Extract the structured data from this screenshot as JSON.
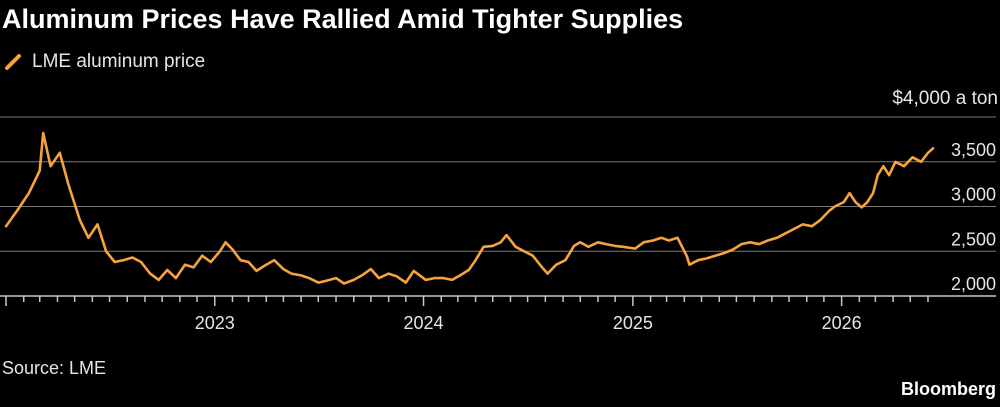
{
  "title": "Aluminum Prices Have Rallied Amid Tighter Supplies",
  "legend": {
    "label": "LME aluminum price"
  },
  "unit_label": "$4,000 a ton",
  "source": "Source: LME",
  "brand": "Bloomberg",
  "colors": {
    "line": "#f5a33c",
    "grid": "#7a7a7a",
    "axis": "#c8c8c8",
    "background": "#000000"
  },
  "chart_data": {
    "type": "line",
    "title": "Aluminum Prices Have Rallied Amid Tighter Supplies",
    "xlabel": "",
    "ylabel": "",
    "ylim": [
      2000,
      4000
    ],
    "xlim": [
      "2022-01-01",
      "2026-06-15"
    ],
    "y_ticks": [
      {
        "value": 2000,
        "label": "2,000"
      },
      {
        "value": 2500,
        "label": "2,500"
      },
      {
        "value": 3000,
        "label": "3,000"
      },
      {
        "value": 3500,
        "label": "3,500"
      },
      {
        "value": 4000,
        "label": "$4,000 a ton"
      }
    ],
    "x_ticks": [
      {
        "value": "2023-01-01",
        "label": "2023"
      },
      {
        "value": "2024-01-01",
        "label": "2024"
      },
      {
        "value": "2025-01-01",
        "label": "2025"
      },
      {
        "value": "2026-01-01",
        "label": "2026"
      }
    ],
    "grid": true,
    "legend_position": "top-left",
    "series": [
      {
        "name": "LME aluminum price",
        "points": [
          [
            "2022-01-01",
            2780
          ],
          [
            "2022-01-20",
            2950
          ],
          [
            "2022-02-10",
            3150
          ],
          [
            "2022-03-01",
            3400
          ],
          [
            "2022-03-07",
            3820
          ],
          [
            "2022-03-20",
            3450
          ],
          [
            "2022-04-05",
            3600
          ],
          [
            "2022-04-20",
            3250
          ],
          [
            "2022-05-10",
            2850
          ],
          [
            "2022-05-25",
            2650
          ],
          [
            "2022-06-10",
            2800
          ],
          [
            "2022-06-25",
            2500
          ],
          [
            "2022-07-10",
            2380
          ],
          [
            "2022-07-25",
            2400
          ],
          [
            "2022-08-10",
            2430
          ],
          [
            "2022-08-25",
            2380
          ],
          [
            "2022-09-10",
            2250
          ],
          [
            "2022-09-25",
            2180
          ],
          [
            "2022-10-10",
            2290
          ],
          [
            "2022-10-25",
            2200
          ],
          [
            "2022-11-10",
            2350
          ],
          [
            "2022-11-25",
            2320
          ],
          [
            "2022-12-10",
            2450
          ],
          [
            "2022-12-25",
            2380
          ],
          [
            "2023-01-10",
            2500
          ],
          [
            "2023-01-20",
            2600
          ],
          [
            "2023-02-01",
            2520
          ],
          [
            "2023-02-15",
            2400
          ],
          [
            "2023-03-01",
            2380
          ],
          [
            "2023-03-15",
            2280
          ],
          [
            "2023-04-01",
            2350
          ],
          [
            "2023-04-15",
            2400
          ],
          [
            "2023-05-01",
            2300
          ],
          [
            "2023-05-15",
            2250
          ],
          [
            "2023-06-01",
            2230
          ],
          [
            "2023-06-15",
            2200
          ],
          [
            "2023-07-01",
            2150
          ],
          [
            "2023-07-15",
            2170
          ],
          [
            "2023-08-01",
            2200
          ],
          [
            "2023-08-15",
            2140
          ],
          [
            "2023-09-01",
            2180
          ],
          [
            "2023-09-15",
            2230
          ],
          [
            "2023-10-01",
            2300
          ],
          [
            "2023-10-15",
            2200
          ],
          [
            "2023-11-01",
            2250
          ],
          [
            "2023-11-15",
            2220
          ],
          [
            "2023-12-01",
            2150
          ],
          [
            "2023-12-15",
            2280
          ],
          [
            "2024-01-05",
            2180
          ],
          [
            "2024-01-20",
            2200
          ],
          [
            "2024-02-05",
            2200
          ],
          [
            "2024-02-20",
            2180
          ],
          [
            "2024-03-05",
            2230
          ],
          [
            "2024-03-20",
            2290
          ],
          [
            "2024-04-01",
            2400
          ],
          [
            "2024-04-15",
            2550
          ],
          [
            "2024-05-01",
            2560
          ],
          [
            "2024-05-15",
            2600
          ],
          [
            "2024-05-25",
            2680
          ],
          [
            "2024-06-10",
            2550
          ],
          [
            "2024-06-25",
            2500
          ],
          [
            "2024-07-10",
            2450
          ],
          [
            "2024-07-25",
            2330
          ],
          [
            "2024-08-05",
            2250
          ],
          [
            "2024-08-20",
            2350
          ],
          [
            "2024-09-05",
            2400
          ],
          [
            "2024-09-20",
            2560
          ],
          [
            "2024-10-01",
            2600
          ],
          [
            "2024-10-15",
            2550
          ],
          [
            "2024-11-01",
            2600
          ],
          [
            "2024-11-15",
            2580
          ],
          [
            "2024-12-01",
            2560
          ],
          [
            "2024-12-15",
            2550
          ],
          [
            "2025-01-05",
            2530
          ],
          [
            "2025-01-20",
            2600
          ],
          [
            "2025-02-05",
            2620
          ],
          [
            "2025-02-20",
            2650
          ],
          [
            "2025-03-05",
            2620
          ],
          [
            "2025-03-20",
            2650
          ],
          [
            "2025-04-05",
            2450
          ],
          [
            "2025-04-10",
            2350
          ],
          [
            "2025-04-25",
            2400
          ],
          [
            "2025-05-10",
            2420
          ],
          [
            "2025-05-25",
            2450
          ],
          [
            "2025-06-10",
            2480
          ],
          [
            "2025-06-25",
            2520
          ],
          [
            "2025-07-10",
            2580
          ],
          [
            "2025-07-25",
            2600
          ],
          [
            "2025-08-10",
            2580
          ],
          [
            "2025-08-25",
            2620
          ],
          [
            "2025-09-10",
            2650
          ],
          [
            "2025-09-25",
            2700
          ],
          [
            "2025-10-10",
            2750
          ],
          [
            "2025-10-25",
            2800
          ],
          [
            "2025-11-10",
            2780
          ],
          [
            "2025-11-25",
            2850
          ],
          [
            "2025-12-10",
            2950
          ],
          [
            "2025-12-20",
            3000
          ],
          [
            "2026-01-05",
            3050
          ],
          [
            "2026-01-15",
            3150
          ],
          [
            "2026-01-25",
            3050
          ],
          [
            "2026-02-05",
            2990
          ],
          [
            "2026-02-15",
            3050
          ],
          [
            "2026-02-25",
            3150
          ],
          [
            "2026-03-05",
            3350
          ],
          [
            "2026-03-15",
            3450
          ],
          [
            "2026-03-25",
            3350
          ],
          [
            "2026-04-05",
            3500
          ],
          [
            "2026-04-20",
            3450
          ],
          [
            "2026-05-05",
            3550
          ],
          [
            "2026-05-20",
            3500
          ],
          [
            "2026-06-01",
            3600
          ],
          [
            "2026-06-10",
            3650
          ]
        ]
      }
    ]
  }
}
